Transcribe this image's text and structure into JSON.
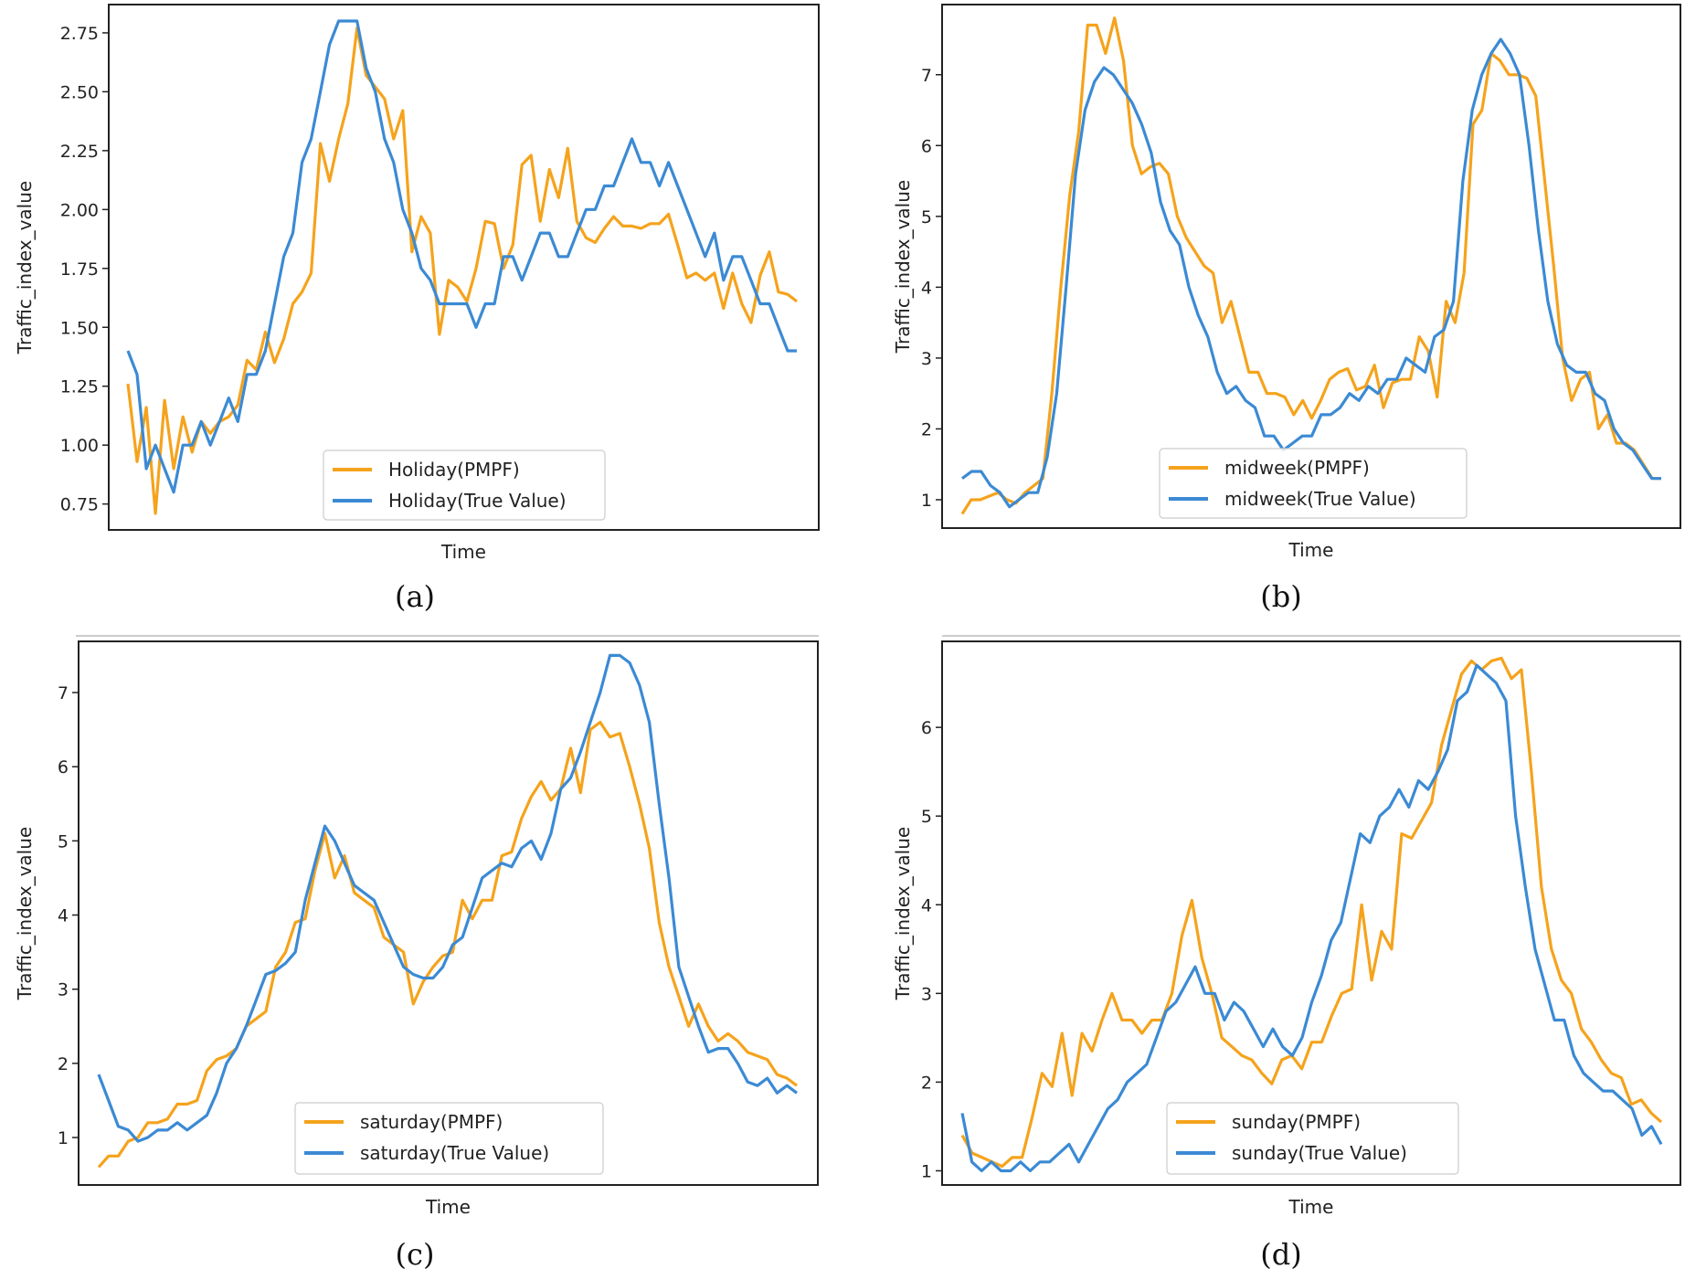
{
  "colors": {
    "pmpf": "#f5a31c",
    "true_value": "#3b8ad4"
  },
  "chart_data": [
    {
      "type": "line",
      "panel_label": "(a)",
      "caption_letter": "a",
      "xlabel": "Time",
      "ylabel": "Traffic_index_value",
      "ylim": [
        0.64,
        2.87
      ],
      "yticks": [
        0.75,
        1.0,
        1.25,
        1.5,
        1.75,
        2.0,
        2.25,
        2.5,
        2.75
      ],
      "ytick_labels": [
        "0.75",
        "1.00",
        "1.25",
        "1.50",
        "1.75",
        "2.00",
        "2.25",
        "2.50",
        "2.75"
      ],
      "legend_position": "bottom-center",
      "series": [
        {
          "name": "Holiday(PMPF)",
          "color": "#f5a31c",
          "values": [
            1.26,
            0.93,
            1.16,
            0.71,
            1.19,
            0.9,
            1.12,
            0.97,
            1.1,
            1.05,
            1.1,
            1.12,
            1.17,
            1.36,
            1.32,
            1.48,
            1.35,
            1.45,
            1.6,
            1.65,
            1.73,
            2.28,
            2.12,
            2.3,
            2.45,
            2.77,
            2.57,
            2.52,
            2.47,
            2.3,
            2.42,
            1.82,
            1.97,
            1.9,
            1.47,
            1.7,
            1.67,
            1.61,
            1.75,
            1.95,
            1.94,
            1.75,
            1.85,
            2.19,
            2.23,
            1.95,
            2.17,
            2.05,
            2.26,
            1.95,
            1.88,
            1.86,
            1.92,
            1.97,
            1.93,
            1.93,
            1.92,
            1.94,
            1.94,
            1.98,
            1.85,
            1.71,
            1.73,
            1.7,
            1.73,
            1.58,
            1.73,
            1.6,
            1.52,
            1.72,
            1.82,
            1.65,
            1.64,
            1.61
          ]
        },
        {
          "name": "Holiday(True Value)",
          "color": "#3b8ad4",
          "values": [
            1.4,
            1.3,
            0.9,
            1.0,
            0.9,
            0.8,
            1.0,
            1.0,
            1.1,
            1.0,
            1.1,
            1.2,
            1.1,
            1.3,
            1.3,
            1.4,
            1.6,
            1.8,
            1.9,
            2.2,
            2.3,
            2.5,
            2.7,
            2.8,
            2.8,
            2.8,
            2.6,
            2.5,
            2.3,
            2.2,
            2.0,
            1.9,
            1.75,
            1.7,
            1.6,
            1.6,
            1.6,
            1.6,
            1.5,
            1.6,
            1.6,
            1.8,
            1.8,
            1.7,
            1.8,
            1.9,
            1.9,
            1.8,
            1.8,
            1.9,
            2.0,
            2.0,
            2.1,
            2.1,
            2.2,
            2.3,
            2.2,
            2.2,
            2.1,
            2.2,
            2.1,
            2.0,
            1.9,
            1.8,
            1.9,
            1.7,
            1.8,
            1.8,
            1.7,
            1.6,
            1.6,
            1.5,
            1.4,
            1.4
          ]
        }
      ]
    },
    {
      "type": "line",
      "panel_label": "(b)",
      "caption_letter": "b",
      "xlabel": "Time",
      "ylabel": "Traffic_index_value",
      "ylim": [
        0.6,
        7.99
      ],
      "yticks": [
        1,
        2,
        3,
        4,
        5,
        6,
        7
      ],
      "ytick_labels": [
        "1",
        "2",
        "3",
        "4",
        "5",
        "6",
        "7"
      ],
      "legend_position": "bottom-center",
      "series": [
        {
          "name": "midweek(PMPF)",
          "color": "#f5a31c",
          "values": [
            0.8,
            1.0,
            1.0,
            1.05,
            1.1,
            1.0,
            0.95,
            1.1,
            1.2,
            1.3,
            2.5,
            4.0,
            5.3,
            6.2,
            7.7,
            7.7,
            7.3,
            7.8,
            7.2,
            6.0,
            5.6,
            5.7,
            5.75,
            5.6,
            5.0,
            4.7,
            4.5,
            4.3,
            4.2,
            3.5,
            3.8,
            3.3,
            2.8,
            2.8,
            2.5,
            2.5,
            2.45,
            2.2,
            2.4,
            2.15,
            2.4,
            2.7,
            2.8,
            2.85,
            2.55,
            2.6,
            2.9,
            2.3,
            2.65,
            2.7,
            2.7,
            3.3,
            3.1,
            2.45,
            3.8,
            3.5,
            4.2,
            6.3,
            6.5,
            7.3,
            7.2,
            7.0,
            7.0,
            6.95,
            6.7,
            5.5,
            4.3,
            3.0,
            2.4,
            2.7,
            2.8,
            2.0,
            2.2,
            1.8,
            1.8,
            1.7,
            1.5,
            1.3,
            1.3
          ]
        },
        {
          "name": "midweek(True Value)",
          "color": "#3b8ad4",
          "values": [
            1.3,
            1.4,
            1.4,
            1.2,
            1.1,
            0.9,
            1.0,
            1.1,
            1.1,
            1.6,
            2.5,
            4.0,
            5.6,
            6.5,
            6.9,
            7.1,
            7.0,
            6.8,
            6.6,
            6.3,
            5.9,
            5.2,
            4.8,
            4.6,
            4.0,
            3.6,
            3.3,
            2.8,
            2.5,
            2.6,
            2.4,
            2.3,
            1.9,
            1.9,
            1.7,
            1.8,
            1.9,
            1.9,
            2.2,
            2.2,
            2.3,
            2.5,
            2.4,
            2.6,
            2.5,
            2.7,
            2.7,
            3.0,
            2.9,
            2.8,
            3.3,
            3.4,
            3.8,
            5.5,
            6.5,
            7.0,
            7.3,
            7.5,
            7.3,
            7.0,
            6.0,
            4.8,
            3.8,
            3.2,
            2.9,
            2.8,
            2.8,
            2.5,
            2.4,
            2.0,
            1.8,
            1.7,
            1.5,
            1.3,
            1.3
          ]
        }
      ]
    },
    {
      "type": "line",
      "panel_label": "(c)",
      "caption_letter": "c",
      "xlabel": "Time",
      "ylabel": "Traffic_index_value",
      "ylim": [
        0.36,
        7.69
      ],
      "yticks": [
        1,
        2,
        3,
        4,
        5,
        6,
        7
      ],
      "ytick_labels": [
        "1",
        "2",
        "3",
        "4",
        "5",
        "6",
        "7"
      ],
      "legend_position": "bottom-center",
      "series": [
        {
          "name": "saturday(PMPF)",
          "color": "#f5a31c",
          "values": [
            0.6,
            0.75,
            0.75,
            0.95,
            1.0,
            1.2,
            1.2,
            1.25,
            1.45,
            1.45,
            1.5,
            1.9,
            2.05,
            2.1,
            2.2,
            2.5,
            2.6,
            2.7,
            3.3,
            3.5,
            3.9,
            3.95,
            4.6,
            5.1,
            4.5,
            4.8,
            4.3,
            4.2,
            4.1,
            3.7,
            3.6,
            3.5,
            2.8,
            3.1,
            3.3,
            3.45,
            3.5,
            4.2,
            3.95,
            4.2,
            4.2,
            4.8,
            4.85,
            5.3,
            5.6,
            5.8,
            5.55,
            5.7,
            6.25,
            5.65,
            6.5,
            6.6,
            6.4,
            6.45,
            6.0,
            5.5,
            4.9,
            3.9,
            3.3,
            2.9,
            2.5,
            2.8,
            2.5,
            2.3,
            2.4,
            2.3,
            2.15,
            2.1,
            2.05,
            1.85,
            1.8,
            1.7
          ]
        },
        {
          "name": "saturday(True Value)",
          "color": "#3b8ad4",
          "values": [
            1.85,
            1.5,
            1.15,
            1.1,
            0.95,
            1.0,
            1.1,
            1.1,
            1.2,
            1.1,
            1.2,
            1.3,
            1.6,
            2.0,
            2.2,
            2.5,
            2.85,
            3.2,
            3.25,
            3.35,
            3.5,
            4.2,
            4.7,
            5.2,
            5.0,
            4.7,
            4.4,
            4.3,
            4.2,
            3.9,
            3.6,
            3.3,
            3.2,
            3.15,
            3.15,
            3.3,
            3.6,
            3.7,
            4.1,
            4.5,
            4.6,
            4.7,
            4.65,
            4.9,
            5.0,
            4.75,
            5.1,
            5.7,
            5.85,
            6.2,
            6.6,
            7.0,
            7.5,
            7.5,
            7.4,
            7.1,
            6.6,
            5.5,
            4.5,
            3.3,
            2.9,
            2.5,
            2.15,
            2.2,
            2.2,
            2.0,
            1.75,
            1.7,
            1.8,
            1.6,
            1.7,
            1.6
          ]
        }
      ]
    },
    {
      "type": "line",
      "panel_label": "(d)",
      "caption_letter": "d",
      "xlabel": "Time",
      "ylabel": "Traffic_index_value",
      "ylim": [
        0.84,
        6.97
      ],
      "yticks": [
        1,
        2,
        3,
        4,
        5,
        6
      ],
      "ytick_labels": [
        "1",
        "2",
        "3",
        "4",
        "5",
        "6"
      ],
      "legend_position": "bottom-center",
      "series": [
        {
          "name": "sunday(PMPF)",
          "color": "#f5a31c",
          "values": [
            1.4,
            1.2,
            1.15,
            1.1,
            1.05,
            1.15,
            1.15,
            1.6,
            2.1,
            1.95,
            2.55,
            1.85,
            2.55,
            2.35,
            2.7,
            3.0,
            2.7,
            2.7,
            2.55,
            2.7,
            2.7,
            3.0,
            3.65,
            4.05,
            3.4,
            3.0,
            2.5,
            2.4,
            2.3,
            2.25,
            2.1,
            1.98,
            2.25,
            2.3,
            2.15,
            2.45,
            2.45,
            2.75,
            3.0,
            3.05,
            4.0,
            3.15,
            3.7,
            3.5,
            4.8,
            4.75,
            4.95,
            5.15,
            5.8,
            6.2,
            6.6,
            6.75,
            6.65,
            6.75,
            6.78,
            6.55,
            6.65,
            5.5,
            4.2,
            3.5,
            3.15,
            3.0,
            2.6,
            2.45,
            2.25,
            2.1,
            2.05,
            1.75,
            1.8,
            1.65,
            1.55
          ]
        },
        {
          "name": "sunday(True Value)",
          "color": "#3b8ad4",
          "values": [
            1.65,
            1.1,
            1.0,
            1.1,
            1.0,
            1.0,
            1.1,
            1.0,
            1.1,
            1.1,
            1.2,
            1.3,
            1.1,
            1.3,
            1.5,
            1.7,
            1.8,
            2.0,
            2.1,
            2.2,
            2.5,
            2.8,
            2.9,
            3.1,
            3.3,
            3.0,
            3.0,
            2.7,
            2.9,
            2.8,
            2.6,
            2.4,
            2.6,
            2.4,
            2.3,
            2.5,
            2.9,
            3.2,
            3.6,
            3.8,
            4.3,
            4.8,
            4.7,
            5.0,
            5.1,
            5.3,
            5.1,
            5.4,
            5.3,
            5.5,
            5.75,
            6.3,
            6.4,
            6.7,
            6.6,
            6.5,
            6.3,
            5.0,
            4.2,
            3.5,
            3.1,
            2.7,
            2.7,
            2.3,
            2.1,
            2.0,
            1.9,
            1.9,
            1.8,
            1.7,
            1.4,
            1.5,
            1.3
          ]
        }
      ]
    }
  ]
}
